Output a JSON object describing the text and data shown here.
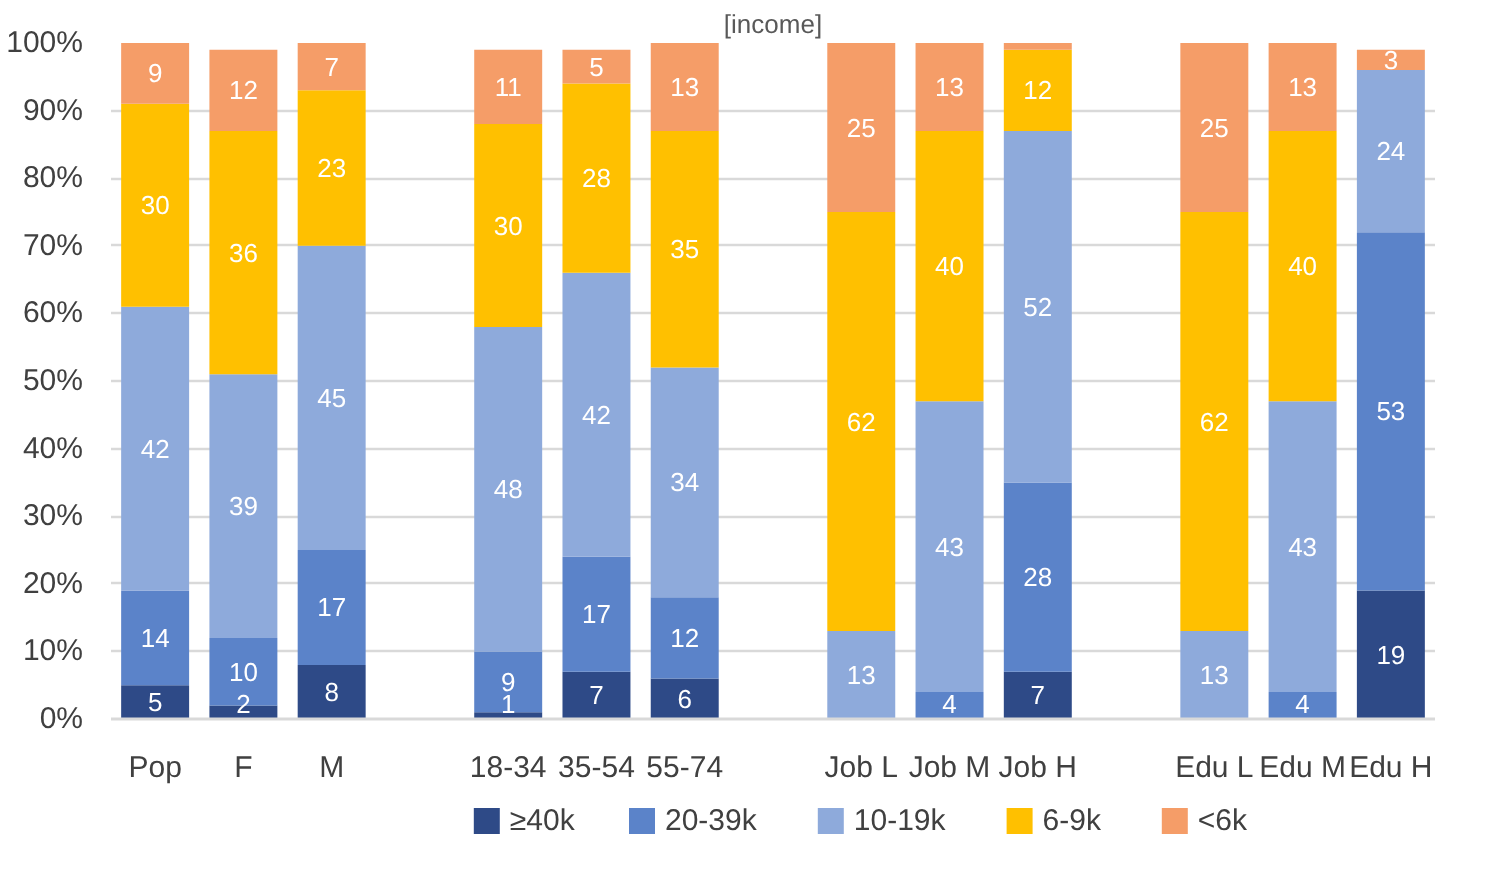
{
  "chart_data": {
    "type": "bar",
    "title": "[income]",
    "stacked": true,
    "categories": [
      "Pop",
      "F",
      "M",
      null,
      "18-34",
      "35-54",
      "55-74",
      null,
      "Job L",
      "Job M",
      "Job H",
      null,
      "Edu L",
      "Edu M",
      "Edu H"
    ],
    "series": [
      {
        "name": "≥40k",
        "color": "#2e4a87",
        "values": [
          5,
          2,
          8,
          null,
          1,
          7,
          6,
          null,
          null,
          null,
          7,
          null,
          null,
          null,
          19
        ],
        "value_labels": [
          "5",
          "2",
          "8",
          null,
          "1",
          "7",
          "6",
          null,
          null,
          null,
          "7",
          null,
          null,
          null,
          "19"
        ]
      },
      {
        "name": "20-39k",
        "color": "#5b83c9",
        "values": [
          14,
          10,
          17,
          null,
          9,
          17,
          12,
          null,
          null,
          4,
          28,
          null,
          null,
          4,
          53
        ],
        "value_labels": [
          "14",
          "10",
          "17",
          null,
          "9",
          "17",
          "12",
          null,
          null,
          "4",
          "28",
          null,
          null,
          "4",
          "53"
        ]
      },
      {
        "name": "10-19k",
        "color": "#8eaadb",
        "values": [
          42,
          39,
          45,
          null,
          48,
          42,
          34,
          null,
          13,
          43,
          52,
          null,
          13,
          43,
          24
        ],
        "value_labels": [
          "42",
          "39",
          "45",
          null,
          "48",
          "42",
          "34",
          null,
          "13",
          "43",
          "52",
          null,
          "13",
          "43",
          "24"
        ]
      },
      {
        "name": "6-9k",
        "color": "#ffc000",
        "values": [
          30,
          36,
          23,
          null,
          30,
          28,
          35,
          null,
          62,
          40,
          12,
          null,
          62,
          40,
          null
        ],
        "value_labels": [
          "30",
          "36",
          "23",
          null,
          "30",
          "28",
          "35",
          null,
          "62",
          "40",
          "12",
          null,
          "62",
          "40",
          null
        ]
      },
      {
        "name": "<6k",
        "color": "#f59d68",
        "values": [
          9,
          12,
          7,
          null,
          11,
          5,
          13,
          null,
          25,
          13,
          1,
          null,
          25,
          13,
          3
        ],
        "value_labels": [
          "9",
          "12",
          "7",
          null,
          "11",
          "5",
          "13",
          null,
          "25",
          "13",
          null,
          null,
          "25",
          "13",
          "3"
        ]
      }
    ],
    "ylim": [
      0,
      100
    ],
    "yticks": [
      {
        "value": 0,
        "label": "0%"
      },
      {
        "value": 10,
        "label": "10%"
      },
      {
        "value": 20,
        "label": "20%"
      },
      {
        "value": 30,
        "label": "30%"
      },
      {
        "value": 40,
        "label": "40%"
      },
      {
        "value": 50,
        "label": "50%"
      },
      {
        "value": 60,
        "label": "60%"
      },
      {
        "value": 70,
        "label": "70%"
      },
      {
        "value": 80,
        "label": "80%"
      },
      {
        "value": 90,
        "label": "90%"
      },
      {
        "value": 100,
        "label": "100%"
      }
    ],
    "grid": "y",
    "legend": "bottom"
  }
}
